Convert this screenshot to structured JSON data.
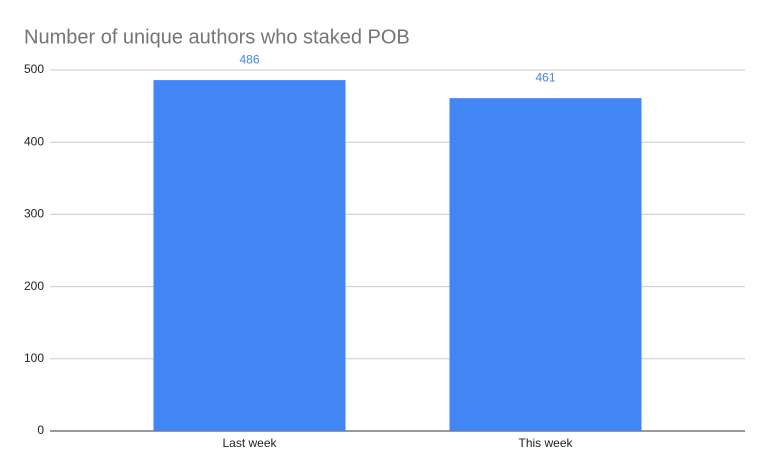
{
  "chart_data": {
    "type": "bar",
    "title": "Number of unique authors who staked POB",
    "categories": [
      "Last week",
      "This week"
    ],
    "values": [
      486,
      461
    ],
    "color": "#4285f4",
    "ylim": [
      0,
      500
    ],
    "yticks": [
      0,
      100,
      200,
      300,
      400,
      500
    ],
    "grid": true
  }
}
